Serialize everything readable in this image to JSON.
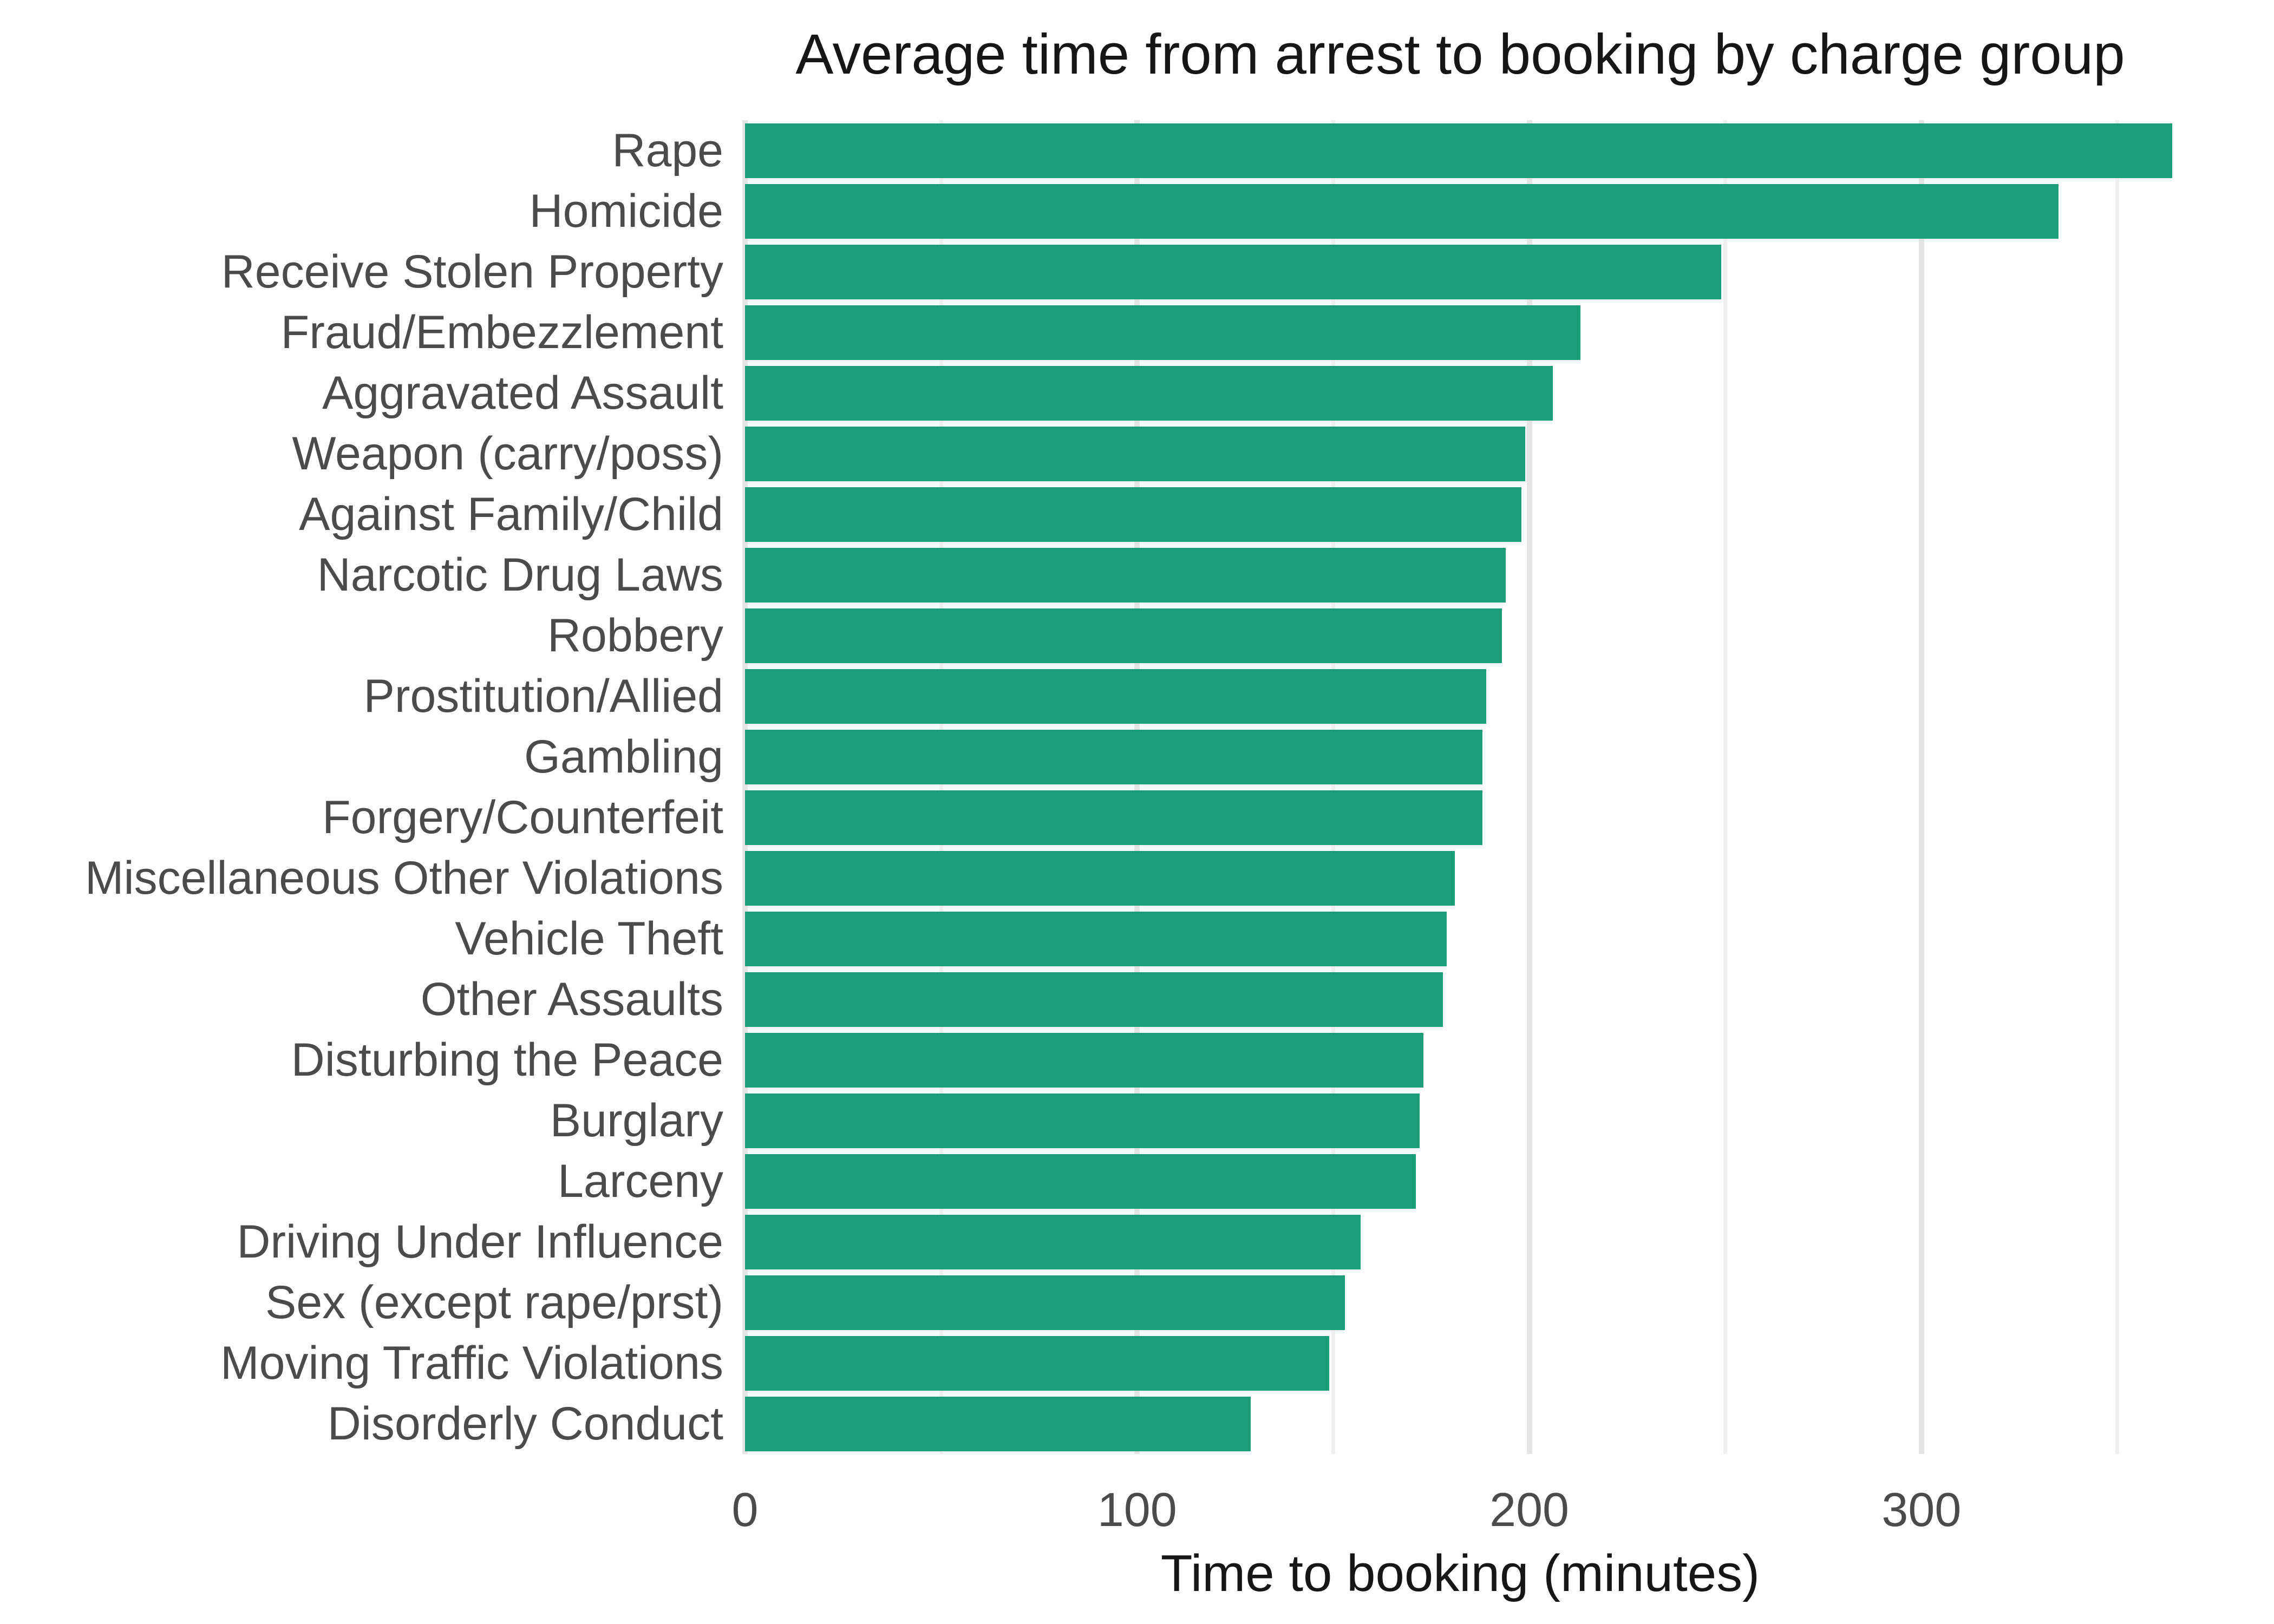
{
  "chart_data": {
    "type": "bar",
    "orientation": "horizontal",
    "title": "Average time from arrest to booking by charge group",
    "xlabel": "Time to booking (minutes)",
    "ylabel": "",
    "legend": "none",
    "grid": "vertical-only",
    "categories": [
      "Rape",
      "Homicide",
      "Receive Stolen Property",
      "Fraud/Embezzlement",
      "Aggravated Assault",
      "Weapon (carry/poss)",
      "Against Family/Child",
      "Narcotic Drug Laws",
      "Robbery",
      "Prostitution/Allied",
      "Gambling",
      "Forgery/Counterfeit",
      "Miscellaneous Other Violations",
      "Vehicle Theft",
      "Other Assaults",
      "Disturbing the Peace",
      "Burglary",
      "Larceny",
      "Driving Under Influence",
      "Sex (except rape/prst)",
      "Moving Traffic Violations",
      "Disorderly Conduct"
    ],
    "values": [
      364,
      335,
      249,
      213,
      206,
      199,
      198,
      194,
      193,
      189,
      188,
      188,
      181,
      179,
      178,
      173,
      172,
      171,
      157,
      153,
      149,
      129
    ],
    "x_ticks": [
      0,
      100,
      200,
      300
    ],
    "x_minor_ticks": [
      50,
      150,
      250,
      350
    ],
    "xlim": [
      0,
      383
    ],
    "bar_color": "#1B9E77",
    "grid_major_color": "#e4e4e4",
    "grid_minor_color": "#efefef",
    "axis_text_color": "#4b4b4b",
    "title_color": "#161616",
    "background": "#ffffff"
  }
}
